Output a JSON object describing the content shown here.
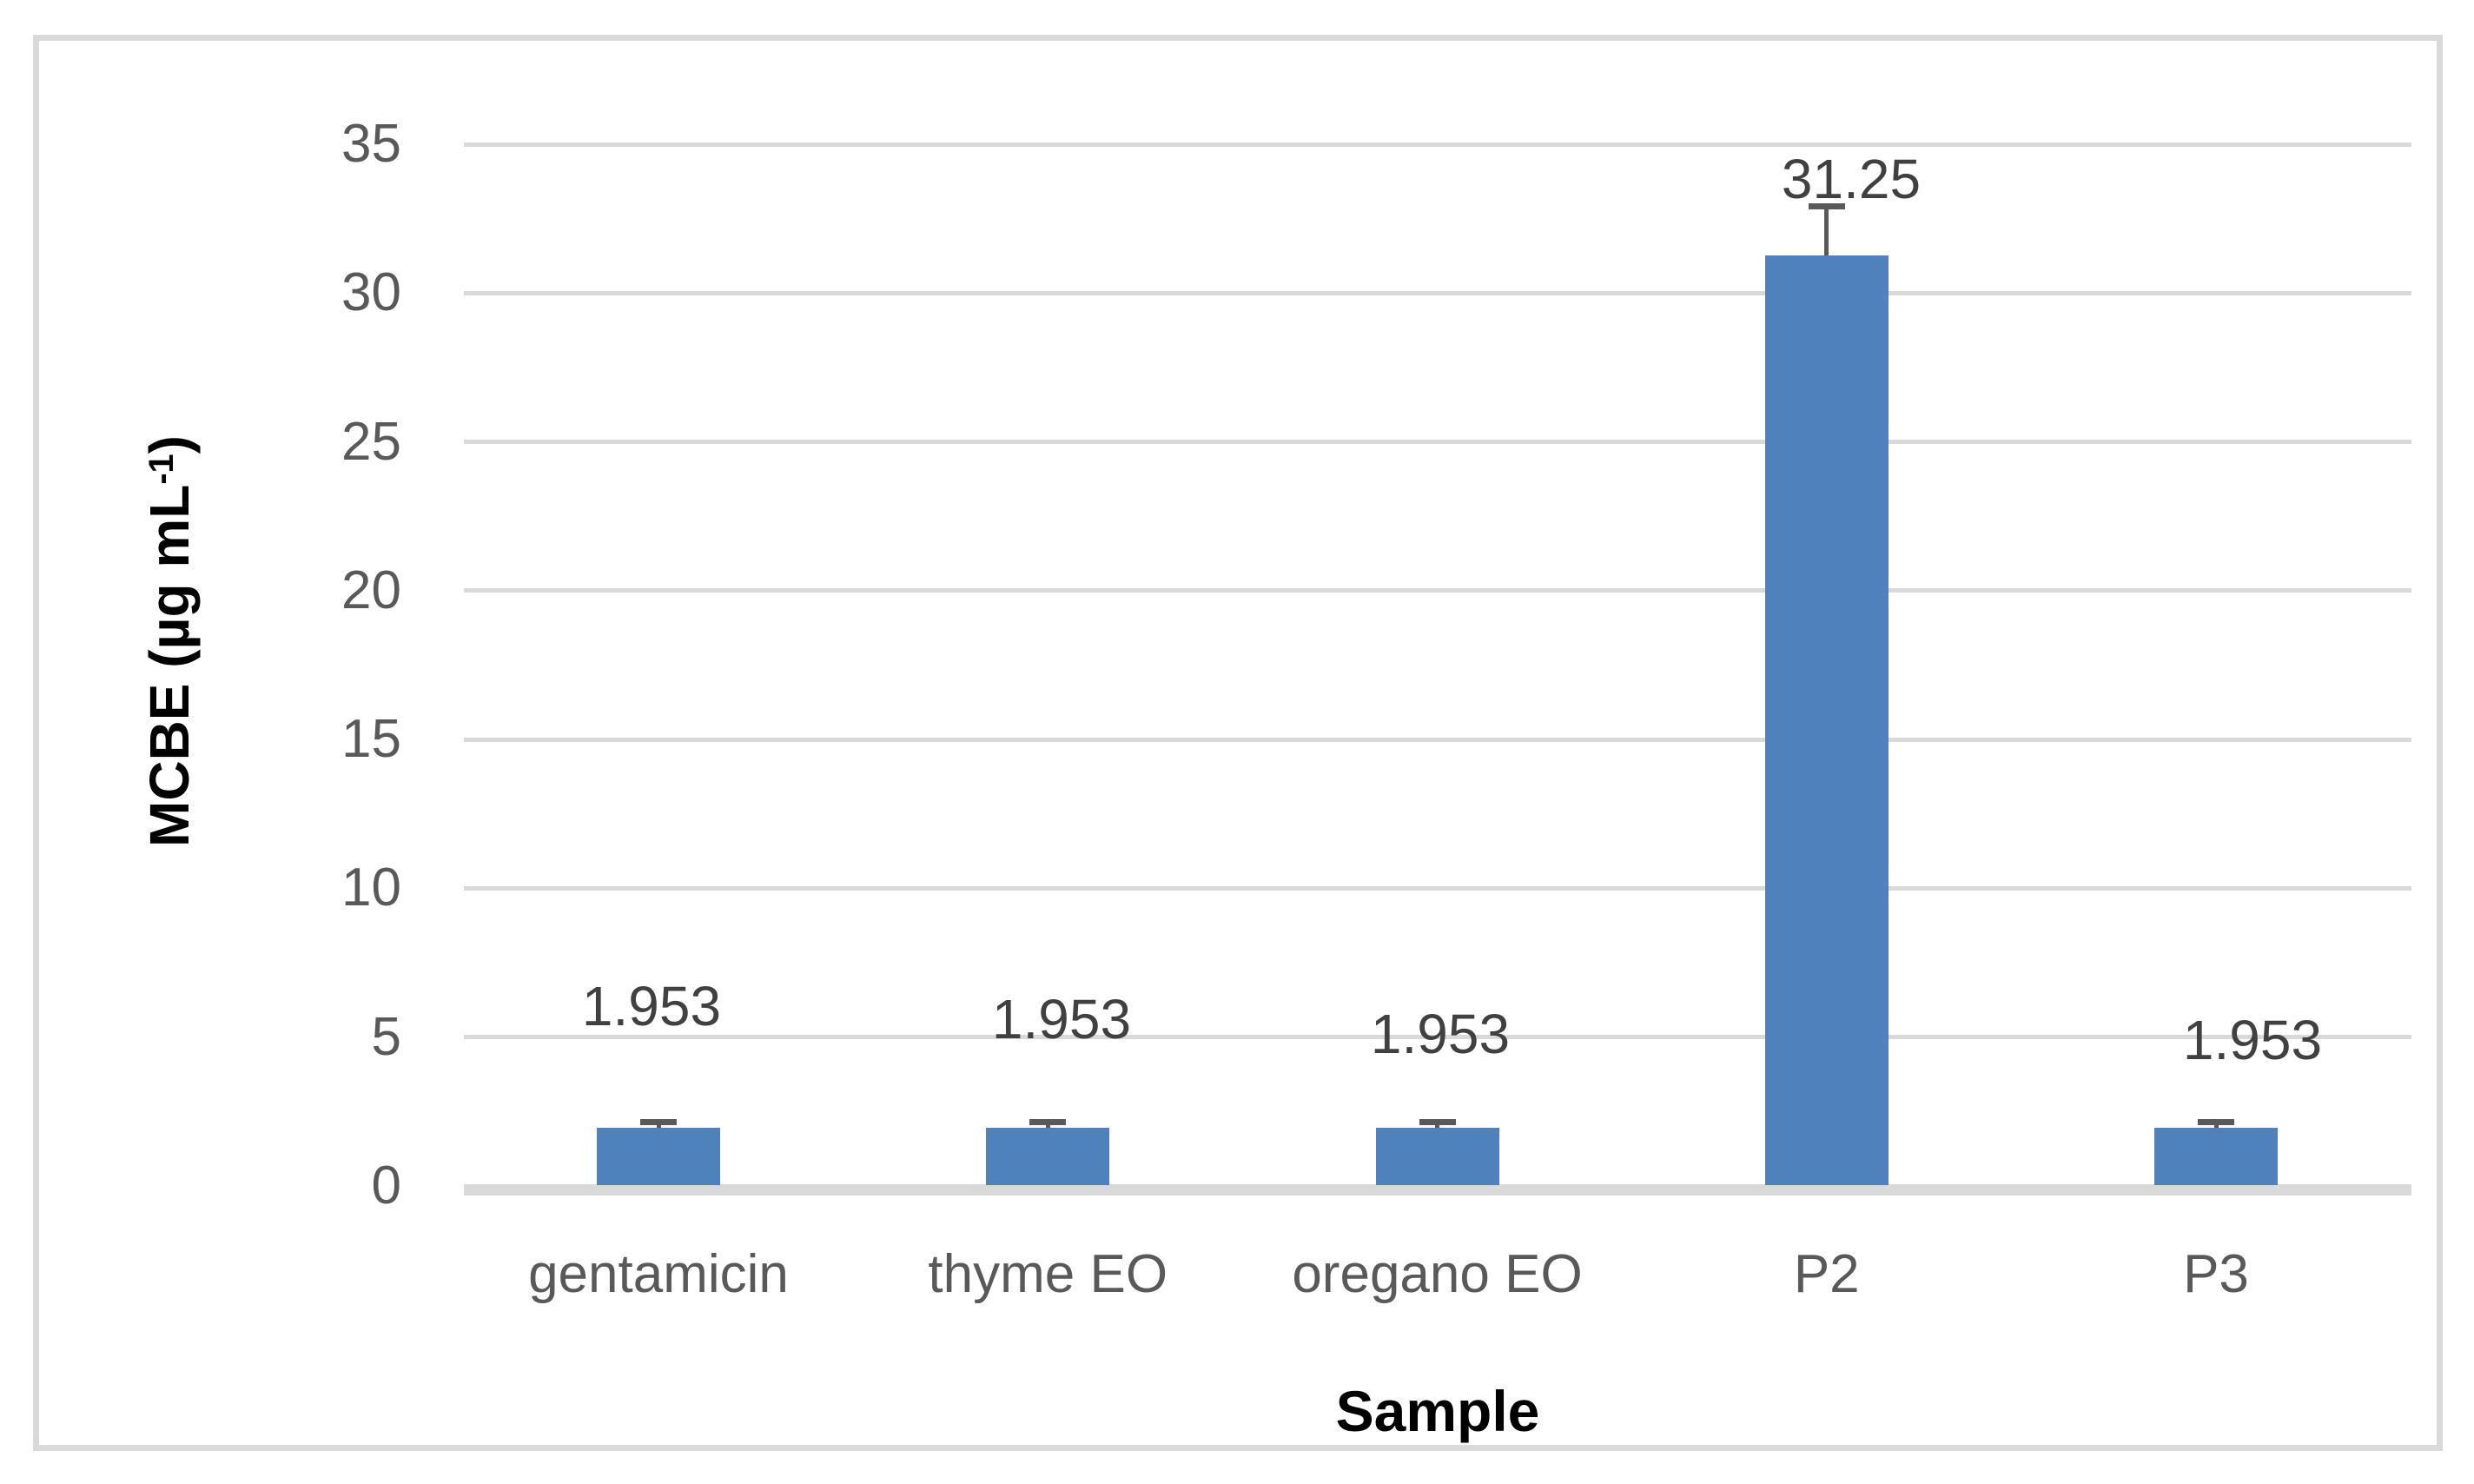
{
  "chart_data": {
    "type": "bar",
    "title": "",
    "categories": [
      "gentamicin",
      "thyme EO",
      "oregano EO",
      "P2",
      "P3"
    ],
    "values": [
      1.953,
      1.953,
      1.953,
      31.25,
      1.953
    ],
    "data_labels": [
      "1.953",
      "1.953",
      "1.953",
      "31.25",
      "1.953"
    ],
    "error_up": [
      0.18,
      0.18,
      0.18,
      1.65,
      0.18
    ],
    "xlabel": "Sample",
    "ylabel": "MCBE (µg mL-1)",
    "ylabel_parts": {
      "main": "MCBE (µg mL",
      "sup": "-1",
      "close": ")"
    },
    "yticks": [
      0,
      5,
      10,
      15,
      20,
      25,
      30,
      35
    ],
    "ylim": [
      0,
      35
    ],
    "grid": "horizontal-major",
    "legend": "none",
    "series_count": 1,
    "colors": {
      "bar": "#4F81BD",
      "gridline": "#D9D9D9",
      "axis_line": "#D9D9D9",
      "error_bar": "#595959",
      "tick_text": "#595959",
      "data_label_text": "#404040",
      "axis_title_text": "#000000",
      "frame_border": "#D9D9D9"
    }
  }
}
